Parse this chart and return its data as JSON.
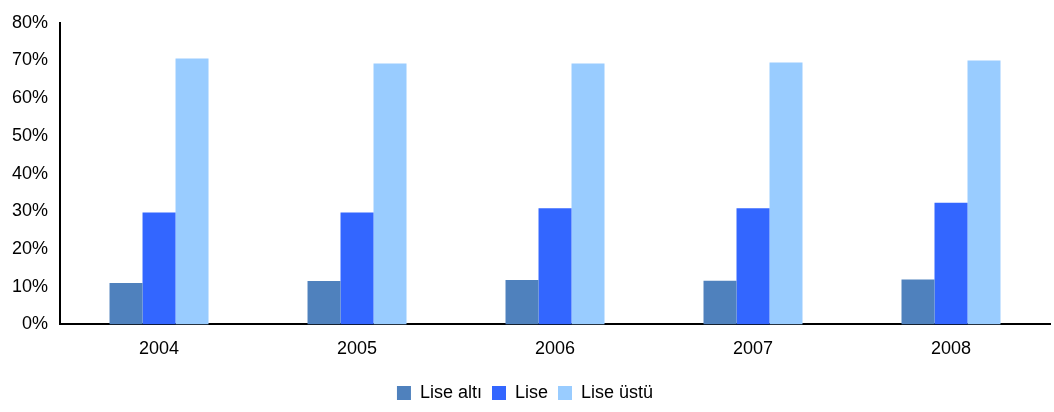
{
  "chart_data": {
    "type": "bar",
    "categories": [
      "2004",
      "2005",
      "2006",
      "2007",
      "2008"
    ],
    "series": [
      {
        "name": "Lise altı",
        "color": "#4f81bd",
        "values": [
          11,
          11.5,
          11.8,
          11.6,
          11.9
        ]
      },
      {
        "name": "Lise",
        "color": "#3366ff",
        "values": [
          29.7,
          29.7,
          30.8,
          30.8,
          32.3
        ]
      },
      {
        "name": "Lise üstü",
        "color": "#99ccff",
        "values": [
          70.5,
          69.2,
          69.2,
          69.5,
          70
        ]
      }
    ],
    "ylim": [
      0,
      80
    ],
    "yticks": [
      {
        "value": 0,
        "label": "0%"
      },
      {
        "value": 10,
        "label": "10%"
      },
      {
        "value": 20,
        "label": "20%"
      },
      {
        "value": 30,
        "label": "30%"
      },
      {
        "value": 40,
        "label": "40%"
      },
      {
        "value": 50,
        "label": "50%"
      },
      {
        "value": 60,
        "label": "60%"
      },
      {
        "value": 70,
        "label": "70%"
      },
      {
        "value": 80,
        "label": "80%"
      }
    ],
    "grid": false,
    "legend": "bottom"
  }
}
